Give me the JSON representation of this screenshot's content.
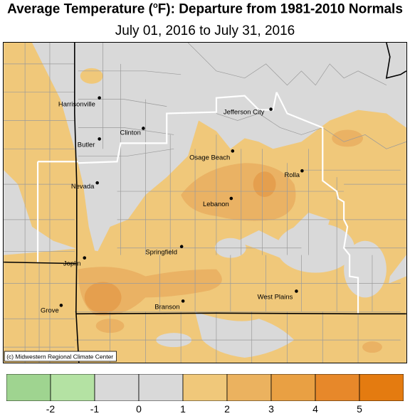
{
  "title_main": "Average Temperature (",
  "title_degree": "o",
  "title_rest": "F): Departure from 1981-2010 Normals",
  "subtitle": "July 01, 2016 to July 31, 2016",
  "credit": "(c) Midwestern Regional Climate Center",
  "colors": {
    "gray": "#d9d9d9",
    "light_orange": "#f0c87a",
    "medium_orange": "#eab264",
    "dark_orange": "#e59f4e",
    "white_border": "#ffffff",
    "black_border": "#000000"
  },
  "cities": [
    {
      "name": "Harrisonville"
    },
    {
      "name": "Clinton"
    },
    {
      "name": "Butler"
    },
    {
      "name": "Jefferson City"
    },
    {
      "name": "Osage Beach"
    },
    {
      "name": "Rolla"
    },
    {
      "name": "Nevada"
    },
    {
      "name": "Lebanon"
    },
    {
      "name": "Springfield"
    },
    {
      "name": "Joplin"
    },
    {
      "name": "West Plains"
    },
    {
      "name": "Branson"
    },
    {
      "name": "Grove"
    }
  ],
  "legend": {
    "bins": [
      {
        "range": "-3 to -2",
        "color": "#9fd490"
      },
      {
        "range": "-2 to -1",
        "color": "#b4e2a3"
      },
      {
        "range": "-1 to 0",
        "color": "#d9d9d9"
      },
      {
        "range": "0 to 1",
        "color": "#d9d9d9"
      },
      {
        "range": "1 to 2",
        "color": "#f0c87a"
      },
      {
        "range": "2 to 3",
        "color": "#ebb25f"
      },
      {
        "range": "3 to 4",
        "color": "#e9a043"
      },
      {
        "range": "4 to 5",
        "color": "#e7882a"
      },
      {
        "range": "5 to 6",
        "color": "#e47b10"
      }
    ],
    "ticks": [
      "-2",
      "-1",
      "0",
      "1",
      "2",
      "3",
      "4",
      "5"
    ]
  }
}
